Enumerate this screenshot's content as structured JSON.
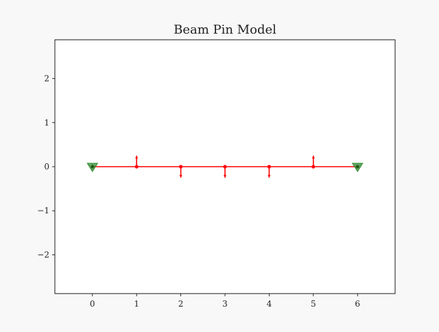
{
  "chart_data": {
    "type": "scatter",
    "title": "Beam Pin Model",
    "xlabel": "",
    "ylabel": "",
    "xlim": [
      -0.85,
      6.85
    ],
    "ylim": [
      -2.88,
      2.88
    ],
    "xticks": [
      0,
      1,
      2,
      3,
      4,
      5,
      6
    ],
    "yticks": [
      -2,
      -1,
      0,
      1,
      2
    ],
    "xtick_labels": [
      "0",
      "1",
      "2",
      "3",
      "4",
      "5",
      "6"
    ],
    "ytick_labels": [
      "−2",
      "−1",
      "0",
      "1",
      "2"
    ],
    "grid": false,
    "beam": {
      "color": "#ff0000",
      "nodes": [
        [
          0,
          0
        ],
        [
          1,
          0
        ],
        [
          2,
          0
        ],
        [
          3,
          0
        ],
        [
          4,
          0
        ],
        [
          5,
          0
        ],
        [
          6,
          0
        ]
      ]
    },
    "supports": {
      "type": "pin",
      "color": "#2e8b2e",
      "positions": [
        [
          0,
          0
        ],
        [
          6,
          0
        ]
      ]
    },
    "point_loads": {
      "color": "#ff0000",
      "items": [
        {
          "x": 1,
          "y": 0,
          "direction": "up"
        },
        {
          "x": 2,
          "y": 0,
          "direction": "down"
        },
        {
          "x": 3,
          "y": 0,
          "direction": "down"
        },
        {
          "x": 4,
          "y": 0,
          "direction": "down"
        },
        {
          "x": 5,
          "y": 0,
          "direction": "up"
        }
      ]
    }
  }
}
